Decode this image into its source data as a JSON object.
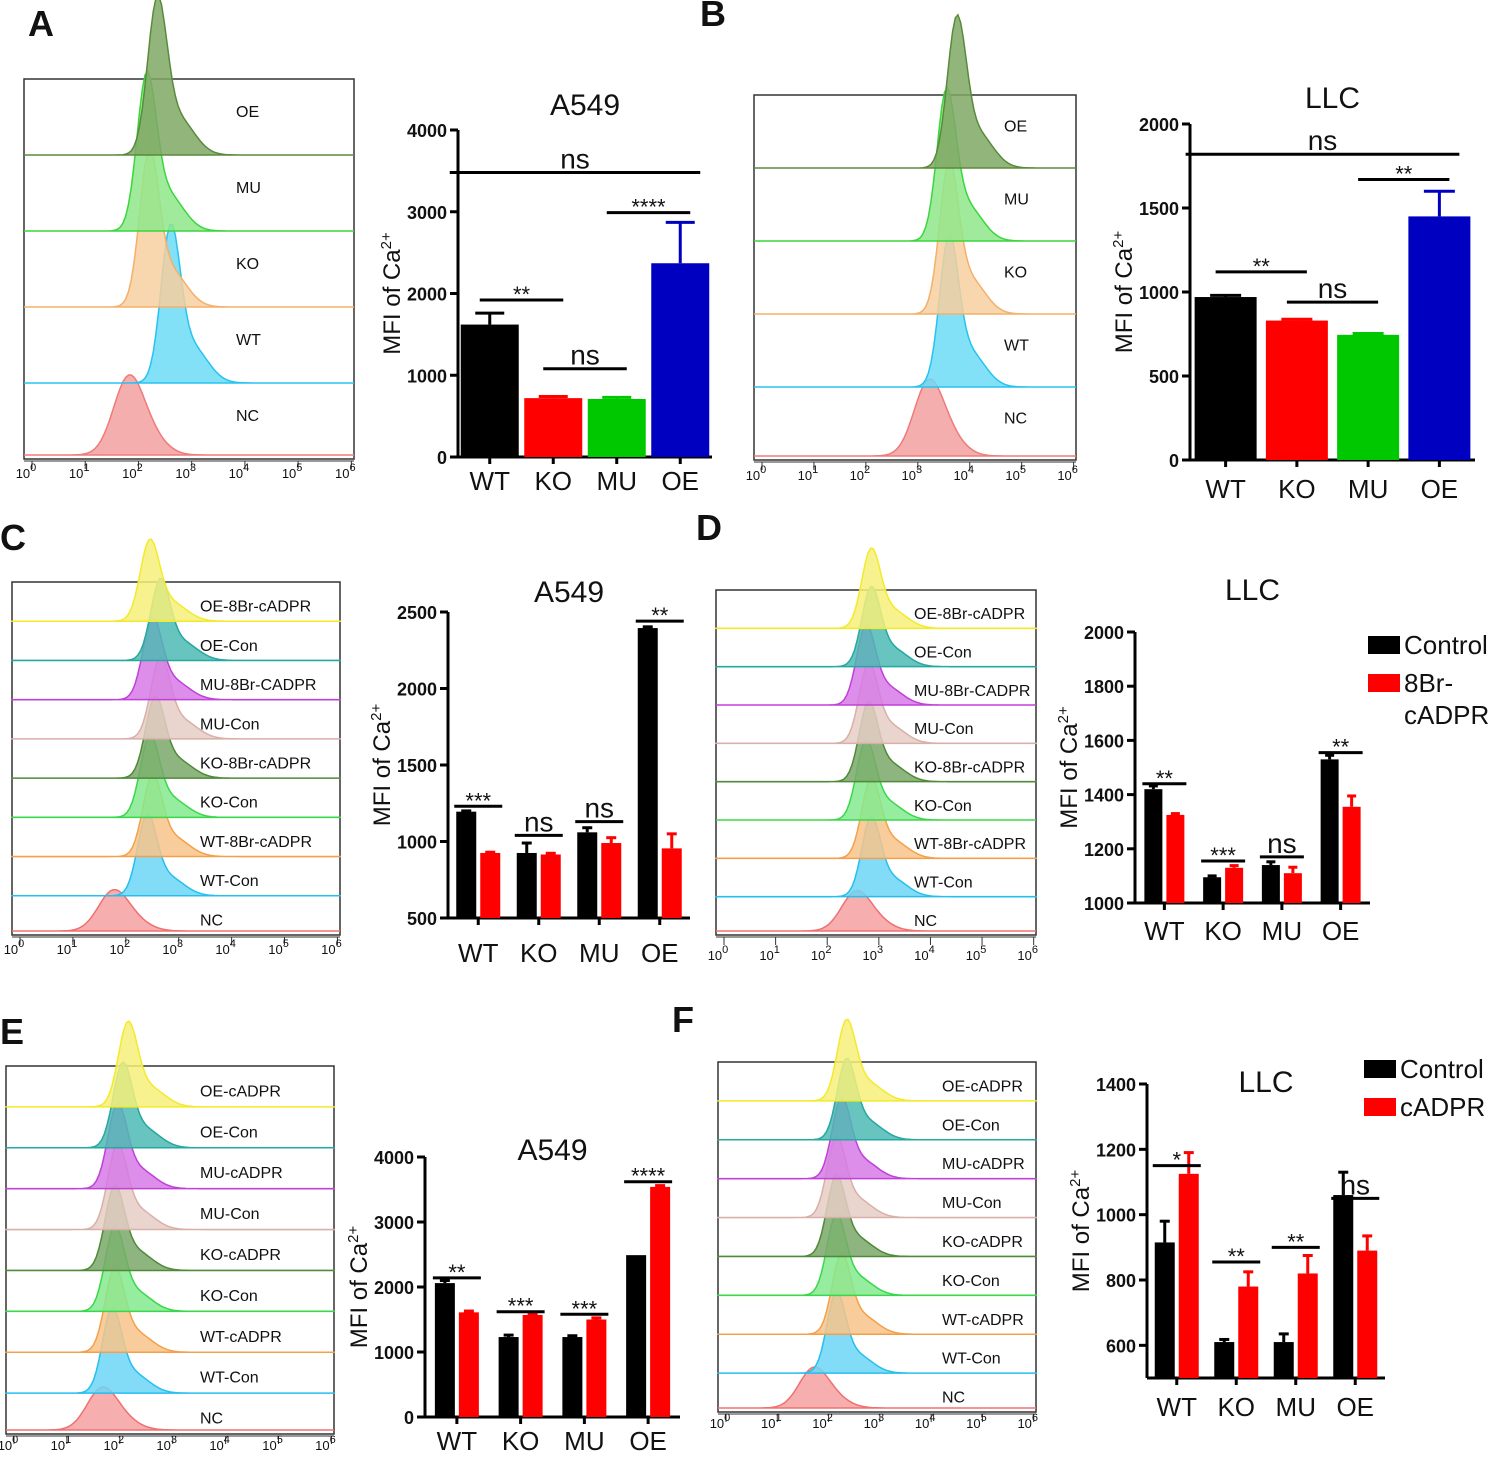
{
  "panels": {
    "A": {
      "letter": "A"
    },
    "B": {
      "letter": "B"
    },
    "C": {
      "letter": "C"
    },
    "D": {
      "letter": "D"
    },
    "E": {
      "letter": "E"
    },
    "F": {
      "letter": "F"
    }
  },
  "colors": {
    "black": "#000000",
    "red": "#ff0000",
    "green": "#00c800",
    "blue": "#0000c0"
  },
  "histograms": {
    "A": {
      "labels": [
        "OE",
        "MU",
        "KO",
        "WT",
        "NC"
      ],
      "tick_labels": [
        "10^0",
        "10^1",
        "10^2",
        "10^3",
        "10^4",
        "10^5",
        "10^6"
      ]
    },
    "B": {
      "labels": [
        "OE",
        "MU",
        "KO",
        "WT",
        "NC"
      ],
      "tick_labels": [
        "10^0",
        "10^1",
        "10^2",
        "10^3",
        "10^4",
        "10^5",
        "10^6"
      ]
    },
    "C": {
      "labels": [
        "OE-8Br-cADPR",
        "OE-Con",
        "MU-8Br-CADPR",
        "MU-Con",
        "KO-8Br-cADPR",
        "KO-Con",
        "WT-8Br-cADPR",
        "WT-Con",
        "NC"
      ],
      "tick_labels": [
        "10^0",
        "10^1",
        "10^2",
        "10^3",
        "10^4",
        "10^5",
        "10^6"
      ]
    },
    "D": {
      "labels": [
        "OE-8Br-cADPR",
        "OE-Con",
        "MU-8Br-CADPR",
        "MU-Con",
        "KO-8Br-cADPR",
        "KO-Con",
        "WT-8Br-cADPR",
        "WT-Con",
        "NC"
      ],
      "tick_labels": [
        "10^0",
        "10^1",
        "10^2",
        "10^3",
        "10^4",
        "10^5",
        "10^6"
      ]
    },
    "E": {
      "labels": [
        "OE-cADPR",
        "OE-Con",
        "MU-cADPR",
        "MU-Con",
        "KO-cADPR",
        "KO-Con",
        "WT-cADPR",
        "WT-Con",
        "NC"
      ],
      "tick_labels": [
        "10^0",
        "10^1",
        "10^2",
        "10^3",
        "10^4",
        "10^5",
        "10^6"
      ]
    },
    "F": {
      "labels": [
        "OE-cADPR",
        "OE-Con",
        "MU-cADPR",
        "MU-Con",
        "KO-cADPR",
        "KO-Con",
        "WT-cADPR",
        "WT-Con",
        "NC"
      ],
      "tick_labels": [
        "10^0",
        "10^1",
        "10^2",
        "10^3",
        "10^4",
        "10^5",
        "10^6"
      ]
    }
  },
  "chart_data": [
    {
      "panel": "A",
      "type": "bar",
      "title": "A549",
      "ylabel": "MFI of Ca2+",
      "categories": [
        "WT",
        "KO",
        "MU",
        "OE"
      ],
      "ylim": [
        0,
        4000
      ],
      "yticks": [
        0,
        1000,
        2000,
        3000,
        4000
      ],
      "series": [
        {
          "name": "MFI",
          "values": [
            1620,
            720,
            710,
            2370
          ],
          "errors": [
            140,
            20,
            20,
            500
          ],
          "colors": [
            "#000000",
            "#ff0000",
            "#00c800",
            "#0000c0"
          ]
        }
      ],
      "significance": [
        {
          "from": 0,
          "to": 1,
          "text": "**",
          "level": 1920
        },
        {
          "from": 1,
          "to": 2,
          "text": "ns",
          "level": 1080
        },
        {
          "from": 2,
          "to": 3,
          "text": "****",
          "level": 2990
        },
        {
          "from": 0,
          "to": 3,
          "text": "ns",
          "level": 3480
        }
      ]
    },
    {
      "panel": "B",
      "type": "bar",
      "title": "LLC",
      "ylabel": "MFI of Ca2+",
      "categories": [
        "WT",
        "KO",
        "MU",
        "OE"
      ],
      "ylim": [
        0,
        2000
      ],
      "yticks": [
        0,
        500,
        1000,
        1500,
        2000
      ],
      "series": [
        {
          "name": "MFI",
          "values": [
            970,
            830,
            745,
            1450
          ],
          "errors": [
            10,
            8,
            8,
            150
          ],
          "colors": [
            "#000000",
            "#ff0000",
            "#00c800",
            "#0000c0"
          ]
        }
      ],
      "significance": [
        {
          "from": 0,
          "to": 1,
          "text": "**",
          "level": 1120
        },
        {
          "from": 1,
          "to": 2,
          "text": "ns",
          "level": 940
        },
        {
          "from": 2,
          "to": 3,
          "text": "**",
          "level": 1670
        },
        {
          "from": 0,
          "to": 3,
          "text": "ns",
          "level": 1820
        }
      ]
    },
    {
      "panel": "C",
      "type": "bar",
      "title": "A549",
      "ylabel": "MFI of Ca2+",
      "categories": [
        "WT",
        "KO",
        "MU",
        "OE"
      ],
      "ylim": [
        500,
        2500
      ],
      "yticks": [
        500,
        1000,
        1500,
        2000,
        2500
      ],
      "series": [
        {
          "name": "Control",
          "values": [
            1195,
            925,
            1060,
            2395
          ],
          "errors": [
            5,
            65,
            30,
            8
          ],
          "color": "#000000"
        },
        {
          "name": "8Br-cADPR",
          "values": [
            925,
            915,
            990,
            955
          ],
          "errors": [
            5,
            8,
            35,
            95
          ],
          "color": "#ff0000"
        }
      ],
      "significance": [
        {
          "cat": 0,
          "text": "***",
          "level": 1230
        },
        {
          "cat": 1,
          "text": "ns",
          "level": 1040
        },
        {
          "cat": 2,
          "text": "ns",
          "level": 1130
        },
        {
          "cat": 3,
          "text": "**",
          "level": 2440
        }
      ]
    },
    {
      "panel": "D",
      "type": "bar",
      "title": "LLC",
      "ylabel": "MFI of Ca2+",
      "categories": [
        "WT",
        "KO",
        "MU",
        "OE"
      ],
      "ylim": [
        1000,
        2000
      ],
      "yticks": [
        1000,
        1200,
        1400,
        1600,
        1800,
        2000
      ],
      "legend": [
        "Control",
        "8Br-\ncADPR"
      ],
      "legend_position": "top-right",
      "series": [
        {
          "name": "Control",
          "values": [
            1420,
            1095,
            1140,
            1530
          ],
          "errors": [
            12,
            5,
            12,
            15
          ],
          "color": "#000000"
        },
        {
          "name": "8Br-cADPR",
          "values": [
            1325,
            1130,
            1110,
            1355
          ],
          "errors": [
            5,
            8,
            22,
            40
          ],
          "color": "#ff0000"
        }
      ],
      "significance": [
        {
          "cat": 0,
          "text": "**",
          "level": 1440
        },
        {
          "cat": 1,
          "text": "***",
          "level": 1155
        },
        {
          "cat": 2,
          "text": "ns",
          "level": 1170
        },
        {
          "cat": 3,
          "text": "**",
          "level": 1555
        }
      ]
    },
    {
      "panel": "E",
      "type": "bar",
      "title": "A549",
      "ylabel": "MFI of Ca2+",
      "categories": [
        "WT",
        "KO",
        "MU",
        "OE"
      ],
      "ylim": [
        0,
        4000
      ],
      "yticks": [
        0,
        1000,
        2000,
        3000,
        4000
      ],
      "series": [
        {
          "name": "Control",
          "values": [
            2060,
            1230,
            1230,
            2490
          ],
          "errors": [
            40,
            30,
            20,
            0
          ],
          "color": "#000000"
        },
        {
          "name": "cADPR",
          "values": [
            1610,
            1570,
            1500,
            3540
          ],
          "errors": [
            20,
            20,
            25,
            20
          ],
          "color": "#ff0000"
        }
      ],
      "significance": [
        {
          "cat": 0,
          "text": "**",
          "level": 2140
        },
        {
          "cat": 1,
          "text": "***",
          "level": 1620
        },
        {
          "cat": 2,
          "text": "***",
          "level": 1580
        },
        {
          "cat": 3,
          "text": "****",
          "level": 3620
        }
      ]
    },
    {
      "panel": "F",
      "type": "bar",
      "title": "LLC",
      "ylabel": "MFI of Ca2+",
      "categories": [
        "WT",
        "KO",
        "MU",
        "OE"
      ],
      "ylim": [
        500,
        1400
      ],
      "yticks": [
        600,
        800,
        1000,
        1200,
        1400
      ],
      "legend": [
        "Control",
        "cADPR"
      ],
      "legend_position": "top-right",
      "series": [
        {
          "name": "Control",
          "values": [
            915,
            610,
            610,
            1060
          ],
          "errors": [
            65,
            8,
            25,
            70
          ],
          "color": "#000000"
        },
        {
          "name": "cADPR",
          "values": [
            1125,
            780,
            820,
            890
          ],
          "errors": [
            65,
            45,
            55,
            45
          ],
          "color": "#ff0000"
        }
      ],
      "significance": [
        {
          "cat": 0,
          "text": "*",
          "level": 1150
        },
        {
          "cat": 1,
          "text": "**",
          "level": 855
        },
        {
          "cat": 2,
          "text": "**",
          "level": 900
        },
        {
          "cat": 3,
          "text": "ns",
          "level": 1050
        }
      ]
    }
  ]
}
